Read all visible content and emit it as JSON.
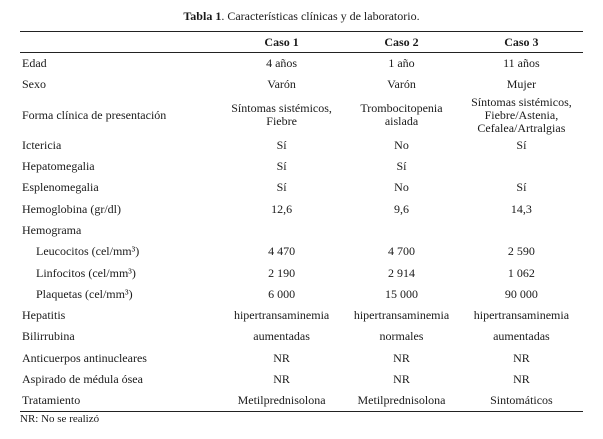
{
  "title": {
    "bold": "Tabla 1",
    "rest": ". Características clínicas y de laboratorio."
  },
  "headers": [
    "",
    "Caso 1",
    "Caso 2",
    "Caso 3"
  ],
  "rows": [
    {
      "label": "Edad",
      "values": [
        "4 años",
        "1 año",
        "11 años"
      ]
    },
    {
      "label": "Sexo",
      "values": [
        "Varón",
        "Varón",
        "Mujer"
      ]
    },
    {
      "label": "Forma clínica de presentación",
      "values": [
        "Síntomas sistémicos,\nFiebre",
        "Trombocitopenia\naislada",
        "Síntomas sistémicos,\nFiebre/Astenia,\nCefalea/Artralgias"
      ]
    },
    {
      "label": "Ictericia",
      "values": [
        "Sí",
        "No",
        "Sí"
      ]
    },
    {
      "label": "Hepatomegalia",
      "values": [
        "Sí",
        "Sí",
        ""
      ]
    },
    {
      "label": "Esplenomegalia",
      "values": [
        "Sí",
        "No",
        "Sí"
      ]
    },
    {
      "label": "Hemoglobina (gr/dl)",
      "values": [
        "12,6",
        "9,6",
        "14,3"
      ]
    },
    {
      "label": "Hemograma",
      "values": [
        "",
        "",
        ""
      ]
    },
    {
      "label": "Leucocitos (cel/mm³)",
      "values": [
        "4 470",
        "4 700",
        "2 590"
      ]
    },
    {
      "label": "Linfocitos (cel/mm³)",
      "values": [
        "2 190",
        "2 914",
        "1 062"
      ]
    },
    {
      "label": "Plaquetas (cel/mm³)",
      "values": [
        "6 000",
        "15 000",
        "90 000"
      ]
    },
    {
      "label": "Hepatitis",
      "values": [
        "hipertransaminemia",
        "hipertransaminemia",
        "hipertransaminemia"
      ]
    },
    {
      "label": "Bilirrubina",
      "values": [
        "aumentadas",
        "normales",
        "aumentadas"
      ]
    },
    {
      "label": "Anticuerpos antinucleares",
      "values": [
        "NR",
        "NR",
        "NR"
      ]
    },
    {
      "label": "Aspirado de médula ósea",
      "values": [
        "NR",
        "NR",
        "NR"
      ]
    },
    {
      "label": "Tratamiento",
      "values": [
        "Metilprednisolona",
        "Metilprednisolona",
        "Sintomáticos"
      ]
    }
  ],
  "footnote": "NR: No se realizó"
}
